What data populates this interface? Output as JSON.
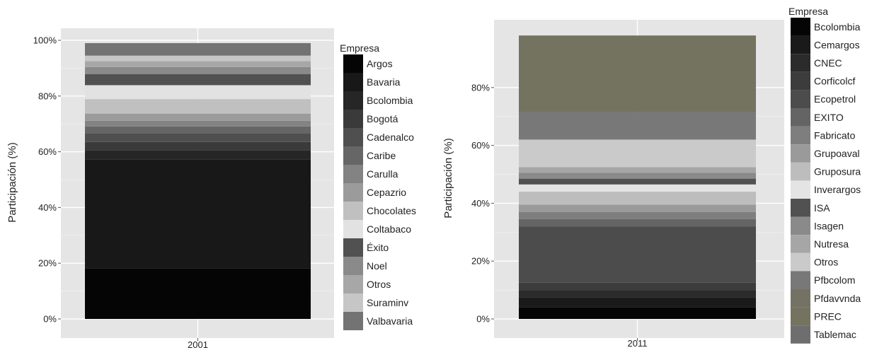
{
  "chart_data": [
    {
      "type": "bar",
      "stacked": true,
      "percent": true,
      "categories": [
        "2001"
      ],
      "ylabel": "Participación (%)",
      "ylim": [
        0,
        100
      ],
      "yticks": [
        0,
        20,
        40,
        60,
        80,
        100
      ],
      "ytick_labels": [
        "0%",
        "20%",
        "40%",
        "60%",
        "80%",
        "100%"
      ],
      "grid": true,
      "legend": {
        "title": "Empresa",
        "position": "right",
        "items": [
          {
            "name": "Argos",
            "value": 18.2,
            "color": "#050505"
          },
          {
            "name": "Bavaria",
            "value": 39.1,
            "color": "#181818"
          },
          {
            "name": "Bcolombia",
            "value": 3.2,
            "color": "#262626"
          },
          {
            "name": "Bogotá",
            "value": 3.0,
            "color": "#3a3a3a"
          },
          {
            "name": "Cadenalco",
            "value": 3.0,
            "color": "#4f4f4f"
          },
          {
            "name": "Caribe",
            "value": 2.6,
            "color": "#666666"
          },
          {
            "name": "Carulla",
            "value": 2.0,
            "color": "#838383"
          },
          {
            "name": "Cepazrio",
            "value": 2.6,
            "color": "#9b9b9b"
          },
          {
            "name": "Chocolates",
            "value": 5.2,
            "color": "#c0c0c0"
          },
          {
            "name": "Coltabaco",
            "value": 5.0,
            "color": "#e2e2e2"
          },
          {
            "name": "Éxito",
            "value": 4.0,
            "color": "#515151"
          },
          {
            "name": "Noel",
            "value": 2.5,
            "color": "#8a8a8a"
          },
          {
            "name": "Otros",
            "value": 2.1,
            "color": "#a7a7a7"
          },
          {
            "name": "Suraminv",
            "value": 2.0,
            "color": "#c6c6c6"
          },
          {
            "name": "Valbavaria",
            "value": 4.5,
            "color": "#737373"
          }
        ]
      }
    },
    {
      "type": "bar",
      "stacked": true,
      "percent": true,
      "categories": [
        "2011"
      ],
      "ylabel": "Participación (%)",
      "ylim": [
        0,
        100
      ],
      "yticks": [
        0,
        20,
        40,
        60,
        80
      ],
      "ytick_labels": [
        "0%",
        "20%",
        "40%",
        "60%",
        "80%"
      ],
      "grid": true,
      "legend": {
        "title": "Empresa",
        "position": "right",
        "items": [
          {
            "name": "Bcolombia",
            "value": 4.0,
            "color": "#050505"
          },
          {
            "name": "Cemargos",
            "value": 3.5,
            "color": "#1a1a1a"
          },
          {
            "name": "CNEC",
            "value": 2.5,
            "color": "#2b2b2b"
          },
          {
            "name": "Corficolcf",
            "value": 2.5,
            "color": "#3c3c3c"
          },
          {
            "name": "Ecopetrol",
            "value": 19.5,
            "color": "#4c4c4c"
          },
          {
            "name": "EXITO",
            "value": 2.5,
            "color": "#646464"
          },
          {
            "name": "Fabricato",
            "value": 2.5,
            "color": "#7e7e7e"
          },
          {
            "name": "Grupoaval",
            "value": 2.5,
            "color": "#9a9a9a"
          },
          {
            "name": "Gruposura",
            "value": 4.5,
            "color": "#bdbdbd"
          },
          {
            "name": "Inverargos",
            "value": 2.5,
            "color": "#e4e4e4"
          },
          {
            "name": "ISA",
            "value": 2.0,
            "color": "#515151"
          },
          {
            "name": "Isagen",
            "value": 2.0,
            "color": "#8a8a8a"
          },
          {
            "name": "Nutresa",
            "value": 2.0,
            "color": "#a6a6a6"
          },
          {
            "name": "Otros",
            "value": 9.5,
            "color": "#cacaca"
          },
          {
            "name": "Pfbcolom",
            "value": 9.5,
            "color": "#787878"
          },
          {
            "name": "Pfdavvnda",
            "value": 0.5,
            "color": "#747264"
          },
          {
            "name": "PREC",
            "value": 26.0,
            "color": "#737360"
          },
          {
            "name": "Tablemac",
            "value": 0.0,
            "color": "#6e6e6e"
          }
        ]
      }
    }
  ]
}
